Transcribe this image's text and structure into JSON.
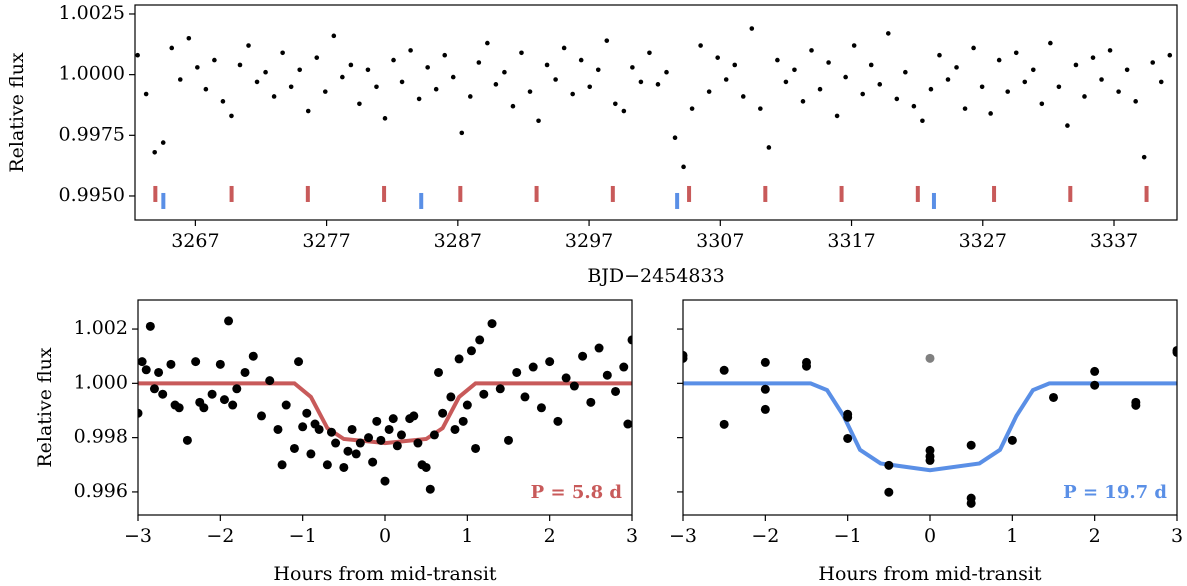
{
  "chart_data": [
    {
      "type": "scatter",
      "ylabel": "Relative flux",
      "xlabel": "BJD−2454833",
      "xlim": [
        3262.4,
        3341.8
      ],
      "ylim": [
        0.99401,
        1.00287
      ],
      "xticks": [
        3267,
        3277,
        3287,
        3297,
        3307,
        3317,
        3327,
        3337
      ],
      "yticks": [
        1.0025,
        {
          "value": 1,
          "label": "1.0000"
        },
        0.9975,
        {
          "value": 0.995,
          "label": "0.9950"
        }
      ],
      "points": {
        "color": "#000000",
        "x": [
          3262.6,
          3263.25,
          3263.9,
          3264.55,
          3265.2,
          3265.85,
          3266.5,
          3267.15,
          3267.8,
          3268.45,
          3269.1,
          3269.75,
          3270.4,
          3271.05,
          3271.7,
          3272.35,
          3273.0,
          3273.65,
          3274.3,
          3274.95,
          3275.6,
          3276.25,
          3276.9,
          3277.55,
          3278.2,
          3278.85,
          3279.5,
          3280.15,
          3280.8,
          3281.45,
          3282.1,
          3282.75,
          3283.4,
          3284.05,
          3284.7,
          3285.35,
          3286.0,
          3286.65,
          3287.3,
          3287.95,
          3288.6,
          3289.25,
          3289.9,
          3290.55,
          3291.2,
          3291.85,
          3292.5,
          3293.15,
          3293.8,
          3294.45,
          3295.1,
          3295.75,
          3296.4,
          3297.05,
          3297.7,
          3298.35,
          3299.0,
          3299.65,
          3300.3,
          3300.95,
          3301.6,
          3302.25,
          3302.9,
          3303.55,
          3304.2,
          3304.85,
          3305.5,
          3306.15,
          3306.8,
          3307.45,
          3308.1,
          3308.75,
          3309.4,
          3310.05,
          3310.7,
          3311.35,
          3312.0,
          3312.65,
          3313.3,
          3313.95,
          3314.6,
          3315.25,
          3315.9,
          3316.55,
          3317.2,
          3317.85,
          3318.5,
          3319.15,
          3319.8,
          3320.45,
          3321.1,
          3321.75,
          3322.4,
          3323.05,
          3323.7,
          3324.35,
          3325.0,
          3325.65,
          3326.3,
          3326.95,
          3327.6,
          3328.25,
          3328.9,
          3329.55,
          3330.2,
          3330.85,
          3331.5,
          3332.15,
          3332.8,
          3333.45,
          3334.1,
          3334.75,
          3335.4,
          3336.05,
          3336.7,
          3337.35,
          3338.0,
          3338.65,
          3339.3,
          3339.95,
          3340.6,
          3341.25
        ],
        "values": [
          1.0008,
          0.9992,
          0.9968,
          0.9972,
          1.0011,
          0.9998,
          1.0015,
          1.0003,
          0.9994,
          1.0006,
          0.9989,
          0.9983,
          1.0004,
          1.0012,
          0.9997,
          1.0001,
          0.9991,
          1.0009,
          0.9995,
          1.0002,
          0.9985,
          1.0007,
          0.9993,
          1.0016,
          0.9999,
          1.0004,
          0.9988,
          1.0002,
          0.9995,
          0.9982,
          1.0006,
          0.9997,
          1.001,
          0.999,
          1.0003,
          0.9994,
          1.0008,
          0.9999,
          0.9976,
          0.9991,
          1.0005,
          1.0013,
          0.9996,
          1.0001,
          0.9987,
          1.0009,
          0.9993,
          0.9981,
          1.0004,
          0.9998,
          1.0011,
          0.9992,
          1.0006,
          0.9995,
          1.0002,
          1.0014,
          0.9988,
          0.9985,
          1.0003,
          0.9997,
          1.0009,
          0.9996,
          1.0001,
          0.9974,
          0.9962,
          0.9986,
          1.0012,
          0.9993,
          1.0007,
          0.9998,
          1.0004,
          0.9991,
          1.0019,
          0.9986,
          0.997,
          1.0006,
          0.9997,
          1.0002,
          0.9989,
          1.001,
          0.9994,
          1.0005,
          0.9983,
          0.9999,
          1.0012,
          0.9992,
          1.0004,
          0.9996,
          1.0017,
          0.999,
          1.0001,
          0.9987,
          0.9981,
          0.9994,
          1.0008,
          0.9998,
          1.0003,
          0.9986,
          1.0011,
          0.9995,
          0.9984,
          1.0006,
          0.9993,
          1.0009,
          0.9997,
          1.0002,
          0.9988,
          1.0013,
          0.9995,
          0.9979,
          1.0004,
          0.9991,
          1.0007,
          0.9998,
          1.001,
          0.9993,
          1.0002,
          0.9989,
          0.9966,
          1.0005,
          0.9997,
          1.0008
        ]
      },
      "transits": [
        {
          "color": "#c85a5a",
          "x": [
            3263.95,
            3269.76,
            3275.57,
            3281.38,
            3287.19,
            3293.0,
            3298.81,
            3304.62,
            3310.43,
            3316.24,
            3322.05,
            3327.86,
            3333.67,
            3339.48
          ]
        },
        {
          "color": "#5a8fe6",
          "x": [
            3264.56,
            3284.21,
            3303.71,
            3323.28
          ]
        }
      ]
    },
    {
      "type": "scatter",
      "ylabel": "Relative flux",
      "xlabel": "Hours from mid-transit",
      "annotation": "P = 5.8 d",
      "annotation_color": "#c85a5a",
      "xlim": [
        -3,
        3
      ],
      "ylim": [
        0.99515,
        1.00307
      ],
      "xticks": [
        {
          "value": -3,
          "label": "−3"
        },
        {
          "value": -2,
          "label": "−2"
        },
        {
          "value": -1,
          "label": "−1"
        },
        0,
        1,
        2,
        3
      ],
      "yticks": [
        1.002,
        {
          "value": 1,
          "label": "1.000"
        },
        0.998,
        0.996
      ],
      "points": {
        "color": "#000000",
        "x": [
          -3,
          -2.95,
          -2.9,
          -2.85,
          -2.8,
          -2.75,
          -2.7,
          -2.6,
          -2.55,
          -2.5,
          -2.4,
          -2.3,
          -2.25,
          -2.2,
          -2.1,
          -2.0,
          -1.95,
          -1.9,
          -1.85,
          -1.8,
          -1.7,
          -1.6,
          -1.5,
          -1.4,
          -1.3,
          -1.25,
          -1.2,
          -1.1,
          -1.05,
          -1.0,
          -0.95,
          -0.9,
          -0.85,
          -0.8,
          -0.7,
          -0.65,
          -0.6,
          -0.5,
          -0.45,
          -0.4,
          -0.35,
          -0.3,
          -0.2,
          -0.15,
          -0.1,
          -0.05,
          0,
          0.05,
          0.1,
          0.15,
          0.2,
          0.3,
          0.35,
          0.4,
          0.45,
          0.5,
          0.55,
          0.6,
          0.65,
          0.7,
          0.8,
          0.85,
          0.9,
          0.95,
          1.0,
          1.05,
          1.1,
          1.15,
          1.2,
          1.3,
          1.4,
          1.5,
          1.6,
          1.7,
          1.8,
          1.9,
          2.0,
          2.1,
          2.2,
          2.3,
          2.4,
          2.5,
          2.6,
          2.7,
          2.8,
          2.9,
          2.95,
          3.0
        ],
        "values": [
          0.9989,
          1.0008,
          1.0005,
          1.0021,
          0.9998,
          1.0004,
          0.9996,
          1.0007,
          0.9992,
          0.9991,
          0.9979,
          1.0008,
          0.9993,
          0.9991,
          0.9996,
          1.0007,
          0.9994,
          1.0023,
          0.9992,
          0.9998,
          1.0004,
          1.001,
          0.9988,
          1.0001,
          0.9983,
          0.997,
          0.9992,
          0.9976,
          1.0008,
          0.9984,
          0.9989,
          0.9974,
          0.9985,
          0.9983,
          0.997,
          0.9982,
          0.9978,
          0.9969,
          0.9975,
          0.9983,
          0.9974,
          0.9978,
          0.998,
          0.9971,
          0.9986,
          0.9979,
          0.9964,
          0.9983,
          0.9987,
          0.9977,
          0.9981,
          0.9987,
          0.9988,
          0.9978,
          0.997,
          0.9969,
          0.9961,
          0.9981,
          1.0004,
          0.9989,
          0.9995,
          0.9983,
          1.0009,
          0.9986,
          0.9992,
          1.0012,
          0.9976,
          1.0016,
          0.9996,
          1.0022,
          0.9998,
          0.9979,
          1.0004,
          0.9995,
          1.0006,
          0.9991,
          1.0008,
          0.9986,
          1.0002,
          0.9999,
          1.001,
          0.9993,
          1.0013,
          1.0003,
          0.9997,
          1.0006,
          0.9985,
          1.0016
        ]
      },
      "model": {
        "color": "#c85a5a",
        "x": [
          -3,
          -1.1,
          -0.9,
          -0.7,
          -0.5,
          0,
          0.5,
          0.7,
          0.9,
          1.1,
          3
        ],
        "values": [
          1,
          1,
          0.9995,
          0.99835,
          0.99795,
          0.9978,
          0.99795,
          0.99835,
          0.9995,
          1,
          1
        ]
      }
    },
    {
      "type": "scatter",
      "xlabel": "Hours from mid-transit",
      "annotation": "P = 19.7 d",
      "annotation_color": "#5a8fe6",
      "xlim": [
        -3,
        3
      ],
      "ylim": [
        0.99515,
        1.00307
      ],
      "xticks": [
        {
          "value": -3,
          "label": "−3"
        },
        {
          "value": -2,
          "label": "−2"
        },
        {
          "value": -1,
          "label": "−1"
        },
        0,
        1,
        2,
        3
      ],
      "yticks": [
        1.002,
        1,
        0.998,
        0.996
      ],
      "show_ytick_labels": false,
      "points": {
        "color": "#000000",
        "x": [
          -3,
          -3,
          -2.5,
          -2.5,
          -2,
          -2,
          -2,
          -1.5,
          -1.5,
          -1,
          -1,
          -1,
          -0.5,
          -0.5,
          0,
          0,
          0,
          0.5,
          0.5,
          0.5,
          1,
          1.5,
          2,
          2,
          2.5,
          2.5,
          3,
          3
        ],
        "values": [
          1.00103,
          1.00092,
          0.99849,
          1.00048,
          1.00077,
          0.99978,
          0.99904,
          1.00077,
          1.00063,
          0.99886,
          0.99875,
          0.99797,
          0.99698,
          0.99599,
          0.99753,
          0.99731,
          0.99716,
          0.99772,
          0.99577,
          0.99558,
          0.9979,
          0.99948,
          0.99993,
          1.00044,
          0.9993,
          0.99919,
          1.00121,
          1.00114
        ]
      },
      "extra_point": {
        "color": "#808080",
        "x": 0,
        "value": 1.00092
      },
      "model": {
        "color": "#5a8fe6",
        "x": [
          -3,
          -1.45,
          -1.25,
          -1.05,
          -0.85,
          -0.6,
          0,
          0.6,
          0.85,
          1.05,
          1.25,
          1.45,
          3
        ],
        "values": [
          1,
          1,
          0.99975,
          0.9988,
          0.99755,
          0.99705,
          0.9968,
          0.99705,
          0.99755,
          0.9988,
          0.99975,
          1,
          1
        ]
      }
    }
  ]
}
